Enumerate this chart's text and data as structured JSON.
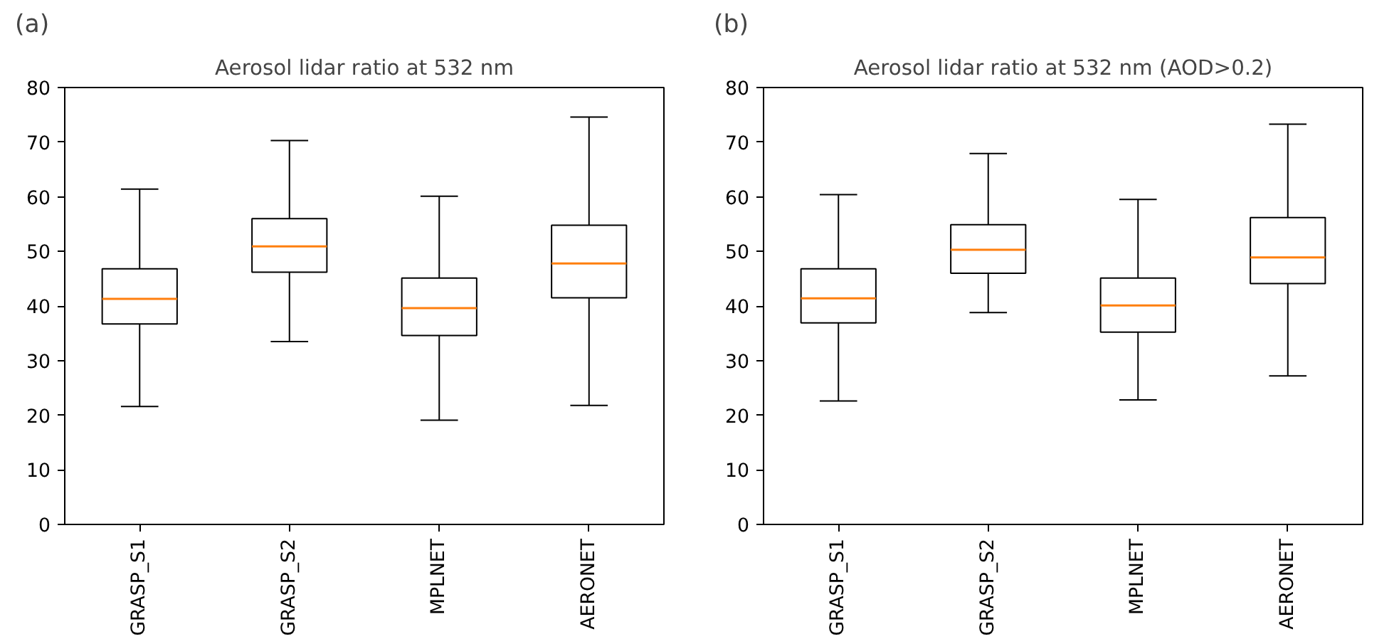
{
  "chart_data": [
    {
      "type": "box",
      "title": "Aerosol lidar ratio at 532 nm",
      "annotations": [
        "(a)"
      ],
      "categories": [
        "GRASP_S1",
        "GRASP_S2",
        "MPLNET",
        "AERONET"
      ],
      "boxes": [
        {
          "low": 21.6,
          "q1": 36.7,
          "median": 41.3,
          "q3": 46.8,
          "high": 61.4
        },
        {
          "low": 33.5,
          "q1": 46.2,
          "median": 50.9,
          "q3": 56.0,
          "high": 70.3
        },
        {
          "low": 19.1,
          "q1": 34.6,
          "median": 39.6,
          "q3": 45.1,
          "high": 60.1
        },
        {
          "low": 21.8,
          "q1": 41.5,
          "median": 47.8,
          "q3": 54.8,
          "high": 74.6
        }
      ],
      "color": "#000000",
      "ylim": [
        0,
        80
      ],
      "yticks": [
        0,
        10,
        20,
        30,
        40,
        50,
        60,
        70,
        80
      ],
      "grid": false
    },
    {
      "type": "box",
      "title": "Aerosol lidar ratio at 532 nm (AOD>0.2)",
      "annotations": [
        "(b)"
      ],
      "categories": [
        "GRASP_S1",
        "GRASP_S2",
        "MPLNET",
        "AERONET"
      ],
      "boxes": [
        {
          "low": 22.6,
          "q1": 36.9,
          "median": 41.4,
          "q3": 46.8,
          "high": 60.4
        },
        {
          "low": 38.8,
          "q1": 46.0,
          "median": 50.3,
          "q3": 54.9,
          "high": 67.9
        },
        {
          "low": 22.8,
          "q1": 35.2,
          "median": 40.1,
          "q3": 45.1,
          "high": 59.5
        },
        {
          "low": 27.2,
          "q1": 44.1,
          "median": 48.9,
          "q3": 56.2,
          "high": 73.3
        }
      ],
      "color": "#000000",
      "ylim": [
        0,
        80
      ],
      "yticks": [
        0,
        10,
        20,
        30,
        40,
        50,
        60,
        70,
        80
      ],
      "grid": false
    }
  ]
}
